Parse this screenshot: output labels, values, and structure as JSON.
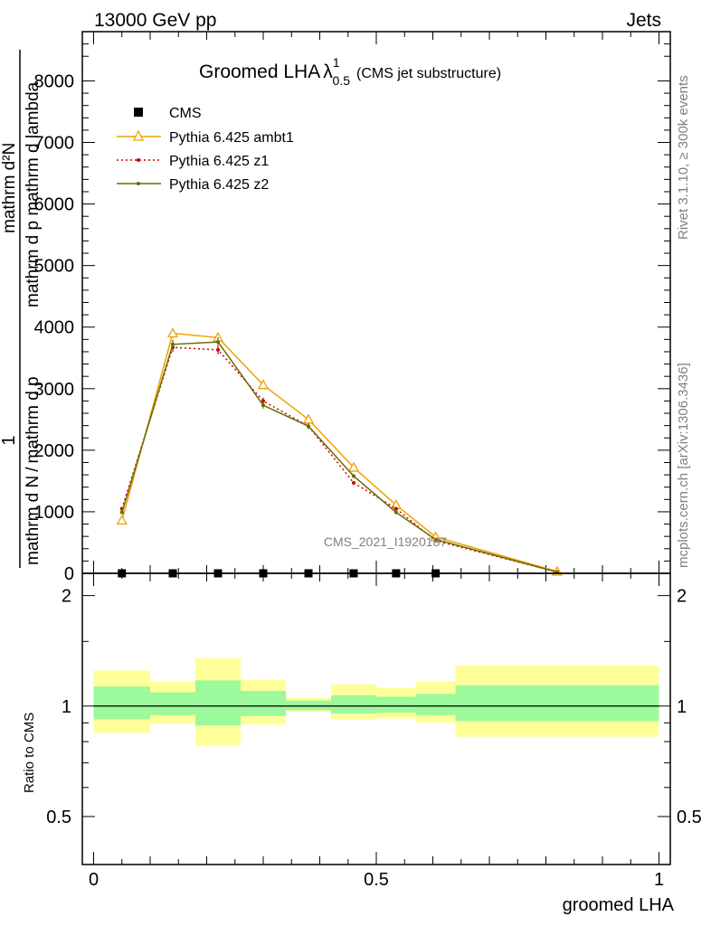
{
  "header": {
    "left": "13000 GeV pp",
    "right": "Jets"
  },
  "side_labels": {
    "rivet": "Rivet 3.1.10, ≥ 300k events",
    "site": "mcplots.cern.ch [arXiv:1306.3436]"
  },
  "watermark": "CMS_2021_I1920187",
  "chart_data": [
    {
      "type": "line",
      "title": {
        "main": "Groomed LHA",
        "lambda": "λ",
        "sup": "1",
        "sub": "0.5",
        "note": "(CMS jet substructure)"
      },
      "ylabel": {
        "one": "1",
        "denominator": "mathrm d N",
        "over": "/",
        "middle": "mathrm d p",
        "numerator": "mathrm d²N",
        "rest": "mathrm d p mathrm d lambda"
      },
      "xlim": [
        -0.02,
        1.02
      ],
      "ylim": [
        0,
        8800
      ],
      "y_ticks": [
        0,
        1000,
        2000,
        3000,
        4000,
        5000,
        6000,
        7000,
        8000
      ],
      "y_tick_labels": [
        "0",
        "1000",
        "2000",
        "3000",
        "4000",
        "5000",
        "6000",
        "7000",
        "8000"
      ],
      "legend_position": "top-left",
      "series": [
        {
          "name": "CMS",
          "color": "#000000",
          "style": "markers",
          "x": [
            0.05,
            0.14,
            0.22,
            0.3,
            0.38,
            0.46,
            0.535,
            0.605
          ],
          "y": [
            0,
            0,
            0,
            0,
            0,
            0,
            0,
            0
          ]
        },
        {
          "name": "Pythia 6.425 ambt1",
          "color": "#f0a000",
          "style": "solid-triangle",
          "x": [
            0.05,
            0.14,
            0.22,
            0.3,
            0.38,
            0.46,
            0.535,
            0.605,
            0.82
          ],
          "y": [
            860,
            3900,
            3830,
            3060,
            2500,
            1720,
            1110,
            590,
            30
          ]
        },
        {
          "name": "Pythia 6.425 z1",
          "color": "#d00000",
          "style": "dotted",
          "x": [
            0.05,
            0.14,
            0.22,
            0.3,
            0.38,
            0.46,
            0.535,
            0.605,
            0.82
          ],
          "y": [
            1050,
            3670,
            3630,
            2800,
            2390,
            1470,
            1050,
            530,
            20
          ]
        },
        {
          "name": "Pythia 6.425 z2",
          "color": "#6b6b00",
          "style": "solid-dot",
          "x": [
            0.05,
            0.14,
            0.22,
            0.3,
            0.38,
            0.46,
            0.535,
            0.605,
            0.82
          ],
          "y": [
            990,
            3720,
            3760,
            2730,
            2390,
            1580,
            990,
            550,
            20
          ]
        }
      ]
    },
    {
      "type": "area",
      "ylabel": "Ratio to CMS",
      "xlabel": "groomed LHA",
      "xlim": [
        -0.02,
        1.02
      ],
      "ylim": [
        0.37,
        2.3
      ],
      "y_ticks": [
        0.5,
        1,
        2
      ],
      "y_tick_labels": [
        "0.5",
        "1",
        "2"
      ],
      "x_ticks": [
        0,
        0.5,
        1
      ],
      "x_tick_labels": [
        "0",
        "0.5",
        "1"
      ],
      "band_colors": {
        "outer": "#ffff9a",
        "inner": "#9cf99c"
      },
      "bins": [
        {
          "lo": 0.0,
          "hi": 0.1,
          "outer": [
            0.845,
            1.25
          ],
          "inner": [
            0.92,
            1.13
          ]
        },
        {
          "lo": 0.1,
          "hi": 0.18,
          "outer": [
            0.895,
            1.165
          ],
          "inner": [
            0.945,
            1.09
          ]
        },
        {
          "lo": 0.18,
          "hi": 0.26,
          "outer": [
            0.78,
            1.35
          ],
          "inner": [
            0.885,
            1.175
          ]
        },
        {
          "lo": 0.26,
          "hi": 0.34,
          "outer": [
            0.89,
            1.18
          ],
          "inner": [
            0.94,
            1.1
          ]
        },
        {
          "lo": 0.34,
          "hi": 0.42,
          "outer": [
            0.965,
            1.055
          ],
          "inner": [
            0.975,
            1.035
          ]
        },
        {
          "lo": 0.42,
          "hi": 0.5,
          "outer": [
            0.92,
            1.145
          ],
          "inner": [
            0.955,
            1.07
          ]
        },
        {
          "lo": 0.5,
          "hi": 0.57,
          "outer": [
            0.925,
            1.12
          ],
          "inner": [
            0.96,
            1.06
          ]
        },
        {
          "lo": 0.57,
          "hi": 0.64,
          "outer": [
            0.9,
            1.165
          ],
          "inner": [
            0.945,
            1.08
          ]
        },
        {
          "lo": 0.64,
          "hi": 1.0,
          "outer": [
            0.825,
            1.29
          ],
          "inner": [
            0.91,
            1.14
          ]
        }
      ],
      "reference": 1
    }
  ]
}
